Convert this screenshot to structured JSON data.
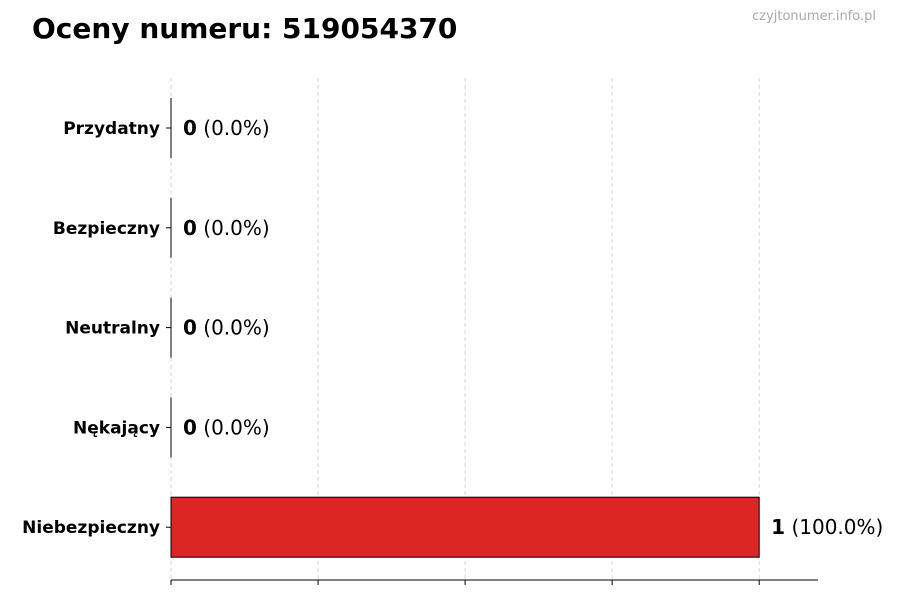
{
  "watermark": "czyjtonumer.info.pl",
  "chart_data": {
    "type": "bar",
    "orientation": "horizontal",
    "title": "Oceny numeru: 519054370",
    "categories": [
      "Przydatny",
      "Bezpieczny",
      "Neutralny",
      "Nękający",
      "Niebezpieczny"
    ],
    "values": [
      0,
      0,
      0,
      0,
      1
    ],
    "percent_labels": [
      "(0.0%)",
      "(0.0%)",
      "(0.0%)",
      "(0.0%)",
      "(100.0%)"
    ],
    "bar_colors": [
      "#22a34a",
      "#2563eb",
      "#9ca3af",
      "#f59e0b",
      "#dc2626"
    ],
    "edge_color": "#000000",
    "xlim": [
      0,
      1.1
    ],
    "xticks": [
      0,
      0.25,
      0.5,
      0.75,
      1.0
    ],
    "xtick_labels_visible": false,
    "grid": "x, dashed",
    "xlabel": "",
    "ylabel": ""
  }
}
